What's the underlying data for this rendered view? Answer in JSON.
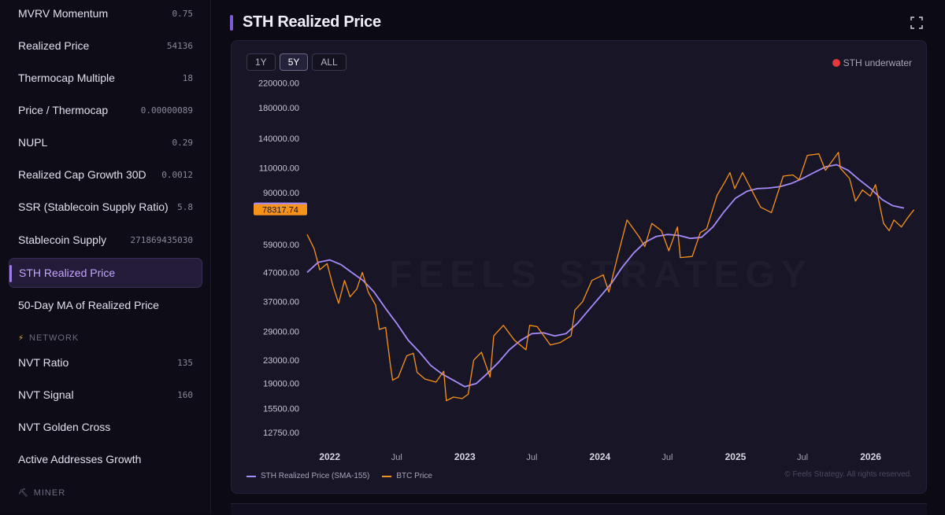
{
  "sidebar": {
    "items": [
      {
        "label": "MVRV Momentum",
        "value": "0.75"
      },
      {
        "label": "Realized Price",
        "value": "54136"
      },
      {
        "label": "Thermocap Multiple",
        "value": "18"
      },
      {
        "label": "Price / Thermocap",
        "value": "0.00000089"
      },
      {
        "label": "NUPL",
        "value": "0.29"
      },
      {
        "label": "Realized Cap Growth 30D",
        "value": "0.0012"
      },
      {
        "label": "SSR (Stablecoin Supply Ratio)",
        "value": "5.8"
      },
      {
        "label": "Stablecoin Supply",
        "value": "271869435030"
      },
      {
        "label": "STH Realized Price",
        "value": ""
      },
      {
        "label": "50-Day MA of Realized Price",
        "value": ""
      }
    ],
    "section_network": "NETWORK",
    "network_items": [
      {
        "label": "NVT Ratio",
        "value": "135"
      },
      {
        "label": "NVT Signal",
        "value": "160"
      },
      {
        "label": "NVT Golden Cross",
        "value": ""
      },
      {
        "label": "Active Addresses Growth",
        "value": ""
      }
    ],
    "section_miner": "MINER"
  },
  "header": {
    "title": "STH Realized Price"
  },
  "icons": {
    "expand": "expand-icon",
    "network": "lightning-icon",
    "miner": "pickaxe-icon"
  },
  "range_tabs": [
    "1Y",
    "5Y",
    "ALL"
  ],
  "active_range": "5Y",
  "status": {
    "label": "STH underwater",
    "color": "#e03a3a"
  },
  "watermark": "FEELS STRATEGY",
  "copyright": "© Feels Strategy. All rights reserved.",
  "colors": {
    "sth": "#a78bfa",
    "btc": "#f7931a",
    "accent": "#7c5cd6"
  },
  "chart_data": {
    "type": "line",
    "y_scale": "log",
    "ylim": [
      11500,
      240000
    ],
    "xlim": [
      "2021-11-01",
      "2026-05-01"
    ],
    "yticks": [
      "220000.00",
      "180000.00",
      "140000.00",
      "110000.00",
      "90000.00",
      "59000.00",
      "47000.00",
      "37000.00",
      "29000.00",
      "23000.00",
      "19000.00",
      "15500.00",
      "12750.00"
    ],
    "xticks": [
      {
        "label": "2022",
        "date": "2022-01-01",
        "major": true
      },
      {
        "label": "Jul",
        "date": "2022-07-01",
        "major": false
      },
      {
        "label": "2023",
        "date": "2023-01-01",
        "major": true
      },
      {
        "label": "Jul",
        "date": "2023-07-01",
        "major": false
      },
      {
        "label": "2024",
        "date": "2024-01-01",
        "major": true
      },
      {
        "label": "Jul",
        "date": "2024-07-01",
        "major": false
      },
      {
        "label": "2025",
        "date": "2025-01-01",
        "major": true
      },
      {
        "label": "Jul",
        "date": "2025-07-01",
        "major": false
      },
      {
        "label": "2026",
        "date": "2026-01-01",
        "major": true
      }
    ],
    "last_values": [
      {
        "series": "STH Realized Price (SMA-155)",
        "value": "79379.38",
        "color": "#a78bfa"
      },
      {
        "series": "BTC Price",
        "value": "78317.74",
        "color": "#f7931a"
      }
    ],
    "series": [
      {
        "name": "STH Realized Price (SMA-155)",
        "color": "#a78bfa",
        "points": [
          [
            "2021-11-01",
            47000
          ],
          [
            "2021-12-01",
            51000
          ],
          [
            "2022-01-01",
            52000
          ],
          [
            "2022-02-01",
            50000
          ],
          [
            "2022-03-01",
            47000
          ],
          [
            "2022-04-01",
            44000
          ],
          [
            "2022-05-01",
            40000
          ],
          [
            "2022-06-01",
            35000
          ],
          [
            "2022-07-01",
            31000
          ],
          [
            "2022-08-01",
            27000
          ],
          [
            "2022-09-01",
            24500
          ],
          [
            "2022-10-01",
            22000
          ],
          [
            "2022-11-01",
            20500
          ],
          [
            "2022-12-01",
            19500
          ],
          [
            "2023-01-01",
            18500
          ],
          [
            "2023-02-01",
            19000
          ],
          [
            "2023-03-01",
            20500
          ],
          [
            "2023-04-01",
            22500
          ],
          [
            "2023-05-01",
            25000
          ],
          [
            "2023-06-01",
            27000
          ],
          [
            "2023-07-01",
            28500
          ],
          [
            "2023-08-01",
            28700
          ],
          [
            "2023-09-01",
            28000
          ],
          [
            "2023-10-01",
            28500
          ],
          [
            "2023-11-01",
            31000
          ],
          [
            "2023-12-01",
            34500
          ],
          [
            "2024-01-01",
            38500
          ],
          [
            "2024-02-01",
            43000
          ],
          [
            "2024-03-01",
            49000
          ],
          [
            "2024-04-01",
            55000
          ],
          [
            "2024-05-01",
            60000
          ],
          [
            "2024-06-01",
            63000
          ],
          [
            "2024-07-01",
            64000
          ],
          [
            "2024-08-01",
            63500
          ],
          [
            "2024-09-01",
            62000
          ],
          [
            "2024-10-01",
            62500
          ],
          [
            "2024-11-01",
            68000
          ],
          [
            "2024-12-01",
            77000
          ],
          [
            "2025-01-01",
            86000
          ],
          [
            "2025-02-01",
            91000
          ],
          [
            "2025-03-01",
            93000
          ],
          [
            "2025-04-01",
            93500
          ],
          [
            "2025-05-01",
            94500
          ],
          [
            "2025-06-01",
            97000
          ],
          [
            "2025-07-01",
            101000
          ],
          [
            "2025-08-01",
            106000
          ],
          [
            "2025-09-01",
            111000
          ],
          [
            "2025-10-01",
            113000
          ],
          [
            "2025-11-01",
            108000
          ],
          [
            "2025-12-01",
            100000
          ],
          [
            "2026-01-01",
            93000
          ],
          [
            "2026-02-01",
            85000
          ],
          [
            "2026-03-01",
            81000
          ],
          [
            "2026-04-01",
            79379
          ]
        ]
      },
      {
        "name": "BTC Price",
        "color": "#f7931a",
        "points": [
          [
            "2021-11-01",
            64000
          ],
          [
            "2021-11-20",
            57000
          ],
          [
            "2021-12-05",
            48000
          ],
          [
            "2021-12-25",
            50500
          ],
          [
            "2022-01-10",
            42000
          ],
          [
            "2022-01-25",
            36500
          ],
          [
            "2022-02-10",
            44000
          ],
          [
            "2022-02-25",
            38500
          ],
          [
            "2022-03-15",
            41000
          ],
          [
            "2022-03-30",
            47000
          ],
          [
            "2022-04-15",
            40000
          ],
          [
            "2022-05-05",
            36000
          ],
          [
            "2022-05-15",
            29500
          ],
          [
            "2022-06-01",
            30000
          ],
          [
            "2022-06-14",
            22000
          ],
          [
            "2022-06-20",
            19500
          ],
          [
            "2022-07-05",
            20000
          ],
          [
            "2022-07-28",
            23800
          ],
          [
            "2022-08-15",
            24300
          ],
          [
            "2022-08-25",
            20800
          ],
          [
            "2022-09-15",
            19700
          ],
          [
            "2022-10-15",
            19200
          ],
          [
            "2022-11-05",
            21000
          ],
          [
            "2022-11-12",
            16500
          ],
          [
            "2022-12-01",
            17000
          ],
          [
            "2022-12-25",
            16800
          ],
          [
            "2023-01-10",
            17400
          ],
          [
            "2023-01-25",
            23000
          ],
          [
            "2023-02-15",
            24500
          ],
          [
            "2023-03-10",
            20000
          ],
          [
            "2023-03-20",
            28000
          ],
          [
            "2023-04-15",
            30500
          ],
          [
            "2023-05-15",
            27000
          ],
          [
            "2023-06-15",
            25000
          ],
          [
            "2023-06-25",
            30500
          ],
          [
            "2023-07-15",
            30200
          ],
          [
            "2023-08-20",
            26000
          ],
          [
            "2023-09-15",
            26500
          ],
          [
            "2023-10-15",
            28000
          ],
          [
            "2023-10-25",
            34500
          ],
          [
            "2023-11-15",
            37000
          ],
          [
            "2023-12-10",
            44000
          ],
          [
            "2024-01-10",
            46000
          ],
          [
            "2024-01-25",
            40000
          ],
          [
            "2024-02-15",
            52000
          ],
          [
            "2024-03-14",
            72000
          ],
          [
            "2024-04-15",
            63000
          ],
          [
            "2024-05-01",
            58000
          ],
          [
            "2024-05-20",
            70000
          ],
          [
            "2024-06-15",
            66000
          ],
          [
            "2024-07-05",
            56000
          ],
          [
            "2024-07-28",
            68000
          ],
          [
            "2024-08-05",
            53000
          ],
          [
            "2024-09-06",
            53500
          ],
          [
            "2024-09-28",
            65000
          ],
          [
            "2024-10-15",
            67000
          ],
          [
            "2024-11-12",
            88000
          ],
          [
            "2024-12-05",
            99000
          ],
          [
            "2024-12-17",
            106000
          ],
          [
            "2024-12-30",
            93000
          ],
          [
            "2025-01-20",
            106000
          ],
          [
            "2025-02-25",
            86000
          ],
          [
            "2025-03-10",
            80000
          ],
          [
            "2025-04-08",
            76500
          ],
          [
            "2025-05-10",
            103000
          ],
          [
            "2025-06-05",
            104000
          ],
          [
            "2025-06-22",
            100000
          ],
          [
            "2025-07-14",
            122000
          ],
          [
            "2025-08-14",
            123500
          ],
          [
            "2025-09-01",
            108000
          ],
          [
            "2025-10-06",
            125000
          ],
          [
            "2025-10-11",
            110000
          ],
          [
            "2025-11-05",
            101000
          ],
          [
            "2025-11-21",
            84000
          ],
          [
            "2025-12-10",
            92000
          ],
          [
            "2025-12-31",
            87500
          ],
          [
            "2026-01-14",
            96000
          ],
          [
            "2026-02-05",
            70000
          ],
          [
            "2026-02-20",
            66000
          ],
          [
            "2026-03-05",
            72000
          ],
          [
            "2026-03-25",
            68000
          ],
          [
            "2026-04-10",
            73000
          ],
          [
            "2026-04-28",
            78318
          ]
        ]
      }
    ]
  }
}
